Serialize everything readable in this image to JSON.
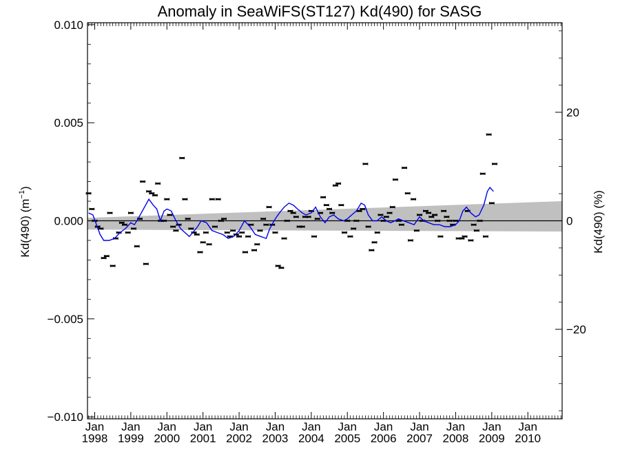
{
  "chart_data": {
    "type": "scatter",
    "title": "Anomaly in SeaWiFS(ST127) Kd(490) for SASG",
    "ylabel_left": "Kd(490) (m",
    "ylabel_left_sup": "−1",
    "ylabel_left_close": ")",
    "ylabel_right": "Kd(490) (%)",
    "xlim": [
      1997.8,
      2010.95
    ],
    "ylim": [
      -0.0101,
      0.0101
    ],
    "y2lim": [
      -36.5,
      36.5
    ],
    "y_ticks": [
      {
        "value": 0.01,
        "label": "0.010"
      },
      {
        "value": 0.005,
        "label": "0.005"
      },
      {
        "value": 0.0,
        "label": "0.000"
      },
      {
        "value": -0.005,
        "label": "−0.005"
      },
      {
        "value": -0.01,
        "label": "−0.010"
      }
    ],
    "y2_ticks": [
      {
        "value": 20,
        "label": "20"
      },
      {
        "value": 0,
        "label": "0"
      },
      {
        "value": -20,
        "label": "−20"
      }
    ],
    "x_ticks": [
      {
        "value": 1998,
        "month": "Jan",
        "year": "1998"
      },
      {
        "value": 1999,
        "month": "Jan",
        "year": "1999"
      },
      {
        "value": 2000,
        "month": "Jan",
        "year": "2000"
      },
      {
        "value": 2001,
        "month": "Jan",
        "year": "2001"
      },
      {
        "value": 2002,
        "month": "Jan",
        "year": "2002"
      },
      {
        "value": 2003,
        "month": "Jan",
        "year": "2003"
      },
      {
        "value": 2004,
        "month": "Jan",
        "year": "2004"
      },
      {
        "value": 2005,
        "month": "Jan",
        "year": "2005"
      },
      {
        "value": 2006,
        "month": "Jan",
        "year": "2006"
      },
      {
        "value": 2007,
        "month": "Jan",
        "year": "2007"
      },
      {
        "value": 2008,
        "month": "Jan",
        "year": "2008"
      },
      {
        "value": 2009,
        "month": "Jan",
        "year": "2009"
      },
      {
        "value": 2010,
        "month": "Jan",
        "year": "2010"
      }
    ],
    "band": {
      "x": [
        1997.8,
        2010.95
      ],
      "upper": [
        0.00015,
        0.001
      ],
      "lower": [
        -0.00045,
        -0.00055
      ]
    },
    "points": [
      [
        1997.83,
        0.0014
      ],
      [
        1997.92,
        0.0006
      ],
      [
        1998.0,
        0.0
      ],
      [
        1998.08,
        -0.0003
      ],
      [
        1998.17,
        -0.0004
      ],
      [
        1998.25,
        -0.0019
      ],
      [
        1998.33,
        -0.0018
      ],
      [
        1998.42,
        0.0004
      ],
      [
        1998.5,
        -0.0023
      ],
      [
        1998.58,
        -0.0009
      ],
      [
        1998.67,
        -0.0006
      ],
      [
        1998.75,
        -0.0001
      ],
      [
        1998.83,
        -0.0002
      ],
      [
        1998.92,
        -0.0006
      ],
      [
        1999.0,
        0.0004
      ],
      [
        1999.08,
        -0.0004
      ],
      [
        1999.17,
        -0.0013
      ],
      [
        1999.25,
        0.0001
      ],
      [
        1999.33,
        0.002
      ],
      [
        1999.42,
        -0.0022
      ],
      [
        1999.5,
        0.0015
      ],
      [
        1999.58,
        0.0014
      ],
      [
        1999.67,
        0.0013
      ],
      [
        1999.75,
        0.0019
      ],
      [
        1999.83,
        0.0
      ],
      [
        1999.92,
        0.0
      ],
      [
        2000.0,
        0.0011
      ],
      [
        2000.08,
        0.0003
      ],
      [
        2000.17,
        -0.0003
      ],
      [
        2000.25,
        -0.0005
      ],
      [
        2000.33,
        -0.0002
      ],
      [
        2000.42,
        0.0032
      ],
      [
        2000.5,
        0.0011
      ],
      [
        2000.58,
        0.0001
      ],
      [
        2000.67,
        -0.0004
      ],
      [
        2000.75,
        -0.0006
      ],
      [
        2000.83,
        -0.0007
      ],
      [
        2000.92,
        -0.0016
      ],
      [
        2001.0,
        -0.0011
      ],
      [
        2001.08,
        -0.0006
      ],
      [
        2001.17,
        -0.0012
      ],
      [
        2001.25,
        0.0011
      ],
      [
        2001.33,
        -0.0003
      ],
      [
        2001.42,
        0.0011
      ],
      [
        2001.5,
        0.0
      ],
      [
        2001.58,
        0.0001
      ],
      [
        2001.67,
        -0.0006
      ],
      [
        2001.75,
        -0.0008
      ],
      [
        2001.83,
        -0.0005
      ],
      [
        2001.92,
        -0.0007
      ],
      [
        2002.0,
        -0.0008
      ],
      [
        2002.08,
        -0.0006
      ],
      [
        2002.17,
        -0.0016
      ],
      [
        2002.25,
        -0.0008
      ],
      [
        2002.33,
        -0.0002
      ],
      [
        2002.42,
        -0.0015
      ],
      [
        2002.5,
        -0.0012
      ],
      [
        2002.58,
        -0.0005
      ],
      [
        2002.67,
        0.0001
      ],
      [
        2002.75,
        -0.0002
      ],
      [
        2002.83,
        0.0007
      ],
      [
        2002.92,
        -0.0002
      ],
      [
        2003.0,
        -0.0006
      ],
      [
        2003.08,
        -0.0023
      ],
      [
        2003.17,
        -0.0024
      ],
      [
        2003.25,
        -0.0009
      ],
      [
        2003.33,
        0.0
      ],
      [
        2003.42,
        0.0005
      ],
      [
        2003.5,
        0.0004
      ],
      [
        2003.58,
        0.0002
      ],
      [
        2003.67,
        -0.0003
      ],
      [
        2003.75,
        -0.0003
      ],
      [
        2003.83,
        0.0002
      ],
      [
        2003.92,
        0.0002
      ],
      [
        2004.0,
        0.0005
      ],
      [
        2004.08,
        -0.0008
      ],
      [
        2004.17,
        0.0001
      ],
      [
        2004.25,
        0.0004
      ],
      [
        2004.33,
        0.0012
      ],
      [
        2004.42,
        0.0008
      ],
      [
        2004.5,
        0.0006
      ],
      [
        2004.58,
        0.0004
      ],
      [
        2004.67,
        0.0018
      ],
      [
        2004.75,
        0.0019
      ],
      [
        2004.83,
        0.0008
      ],
      [
        2004.92,
        -0.0006
      ],
      [
        2005.0,
        0.0
      ],
      [
        2005.08,
        -0.0008
      ],
      [
        2005.17,
        -0.0004
      ],
      [
        2005.25,
        0.0
      ],
      [
        2005.33,
        0.0005
      ],
      [
        2005.42,
        0.0006
      ],
      [
        2005.5,
        0.0029
      ],
      [
        2005.58,
        -0.0003
      ],
      [
        2005.67,
        -0.0015
      ],
      [
        2005.75,
        -0.0011
      ],
      [
        2005.83,
        -0.0006
      ],
      [
        2005.92,
        0.0003
      ],
      [
        2006.0,
        0.0
      ],
      [
        2006.08,
        0.0002
      ],
      [
        2006.17,
        0.0004
      ],
      [
        2006.25,
        0.0007
      ],
      [
        2006.33,
        0.0021
      ],
      [
        2006.42,
        0.0
      ],
      [
        2006.5,
        -0.0002
      ],
      [
        2006.58,
        0.0027
      ],
      [
        2006.67,
        0.0014
      ],
      [
        2006.75,
        -0.001
      ],
      [
        2006.83,
        0.0011
      ],
      [
        2006.92,
        -0.0005
      ],
      [
        2007.0,
        0.0003
      ],
      [
        2007.08,
        0.0
      ],
      [
        2007.17,
        0.0005
      ],
      [
        2007.25,
        0.0004
      ],
      [
        2007.33,
        0.0002
      ],
      [
        2007.42,
        0.0003
      ],
      [
        2007.5,
        0.0
      ],
      [
        2007.58,
        -0.0008
      ],
      [
        2007.67,
        0.0005
      ],
      [
        2007.75,
        0.0002
      ],
      [
        2007.83,
        0.0
      ],
      [
        2007.92,
        -0.0002
      ],
      [
        2008.0,
        0.0
      ],
      [
        2008.08,
        -0.0009
      ],
      [
        2008.17,
        -0.0009
      ],
      [
        2008.25,
        -0.0008
      ],
      [
        2008.33,
        0.0005
      ],
      [
        2008.42,
        -0.001
      ],
      [
        2008.5,
        -0.0002
      ],
      [
        2008.58,
        -0.0005
      ],
      [
        2008.67,
        0.0
      ],
      [
        2008.75,
        0.0024
      ],
      [
        2008.83,
        -0.0008
      ],
      [
        2008.92,
        0.0044
      ],
      [
        2009.0,
        0.0009
      ],
      [
        2009.08,
        0.0029
      ]
    ],
    "smooth": [
      [
        1997.83,
        0.0004
      ],
      [
        1997.95,
        0.0003
      ],
      [
        1998.05,
        -0.0002
      ],
      [
        1998.15,
        -0.0007
      ],
      [
        1998.25,
        -0.001
      ],
      [
        1998.4,
        -0.001
      ],
      [
        1998.55,
        -0.0009
      ],
      [
        1998.7,
        -0.0006
      ],
      [
        1998.85,
        -0.0004
      ],
      [
        1999.0,
        -0.0001
      ],
      [
        1999.1,
        -0.0002
      ],
      [
        1999.2,
        0.0001
      ],
      [
        1999.35,
        0.0006
      ],
      [
        1999.5,
        0.0011
      ],
      [
        1999.62,
        0.0008
      ],
      [
        1999.72,
        0.0006
      ],
      [
        1999.82,
        0.0
      ],
      [
        1999.92,
        0.0005
      ],
      [
        2000.0,
        0.0006
      ],
      [
        2000.12,
        0.0005
      ],
      [
        2000.25,
        0.0
      ],
      [
        2000.38,
        -0.0004
      ],
      [
        2000.5,
        -0.0006
      ],
      [
        2000.62,
        -0.0008
      ],
      [
        2000.72,
        -0.0006
      ],
      [
        2000.85,
        -0.0003
      ],
      [
        2000.95,
        0.0
      ],
      [
        2001.1,
        -0.0001
      ],
      [
        2001.25,
        -0.0005
      ],
      [
        2001.4,
        -0.0006
      ],
      [
        2001.55,
        -0.0007
      ],
      [
        2001.7,
        -0.0009
      ],
      [
        2001.85,
        -0.0008
      ],
      [
        2002.0,
        -0.0005
      ],
      [
        2002.15,
        0.0
      ],
      [
        2002.3,
        -0.0003
      ],
      [
        2002.45,
        -0.0007
      ],
      [
        2002.6,
        -0.0008
      ],
      [
        2002.75,
        -0.0009
      ],
      [
        2002.85,
        -0.0004
      ],
      [
        2003.0,
        0.0001
      ],
      [
        2003.12,
        0.0004
      ],
      [
        2003.25,
        0.0007
      ],
      [
        2003.38,
        0.0009
      ],
      [
        2003.5,
        0.0008
      ],
      [
        2003.62,
        0.0006
      ],
      [
        2003.75,
        0.0004
      ],
      [
        2003.85,
        0.0003
      ],
      [
        2004.0,
        0.0004
      ],
      [
        2004.12,
        0.0007
      ],
      [
        2004.25,
        0.0002
      ],
      [
        2004.38,
        -0.0001
      ],
      [
        2004.5,
        0.0002
      ],
      [
        2004.62,
        0.0003
      ],
      [
        2004.75,
        0.0001
      ],
      [
        2004.9,
        0.0
      ],
      [
        2005.0,
        0.0001
      ],
      [
        2005.12,
        0.0003
      ],
      [
        2005.25,
        0.0005
      ],
      [
        2005.38,
        0.0009
      ],
      [
        2005.48,
        0.0008
      ],
      [
        2005.58,
        0.0003
      ],
      [
        2005.7,
        0.0
      ],
      [
        2005.82,
        0.0
      ],
      [
        2005.95,
        0.0002
      ],
      [
        2006.08,
        0.0
      ],
      [
        2006.2,
        -0.0001
      ],
      [
        2006.32,
        0.0
      ],
      [
        2006.42,
        0.0001
      ],
      [
        2006.55,
        0.0
      ],
      [
        2006.7,
        -0.0001
      ],
      [
        2006.85,
        -0.0002
      ],
      [
        2007.0,
        0.0002
      ],
      [
        2007.12,
        0.0
      ],
      [
        2007.25,
        -0.0001
      ],
      [
        2007.4,
        -0.0002
      ],
      [
        2007.55,
        -0.0002
      ],
      [
        2007.7,
        -0.0003
      ],
      [
        2007.85,
        -0.0003
      ],
      [
        2008.0,
        -0.0002
      ],
      [
        2008.1,
        0.0
      ],
      [
        2008.2,
        0.0005
      ],
      [
        2008.3,
        0.0007
      ],
      [
        2008.42,
        0.0004
      ],
      [
        2008.55,
        0.0002
      ],
      [
        2008.65,
        0.0003
      ],
      [
        2008.78,
        0.0008
      ],
      [
        2008.88,
        0.0015
      ],
      [
        2008.95,
        0.0017
      ],
      [
        2009.05,
        0.0015
      ]
    ]
  }
}
